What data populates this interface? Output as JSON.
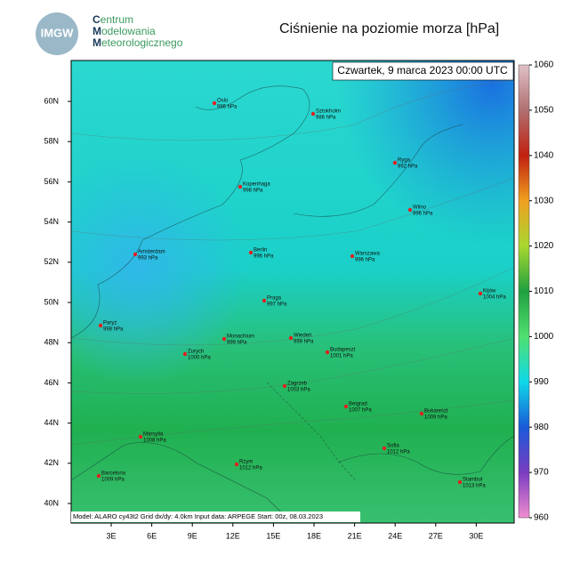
{
  "header": {
    "logo": "IMGW",
    "org": [
      "Centrum",
      "Modelowania",
      "Meteorologicznego"
    ],
    "title": "Ciśnienie na poziomie morza [hPa]"
  },
  "map": {
    "date": "Czwartek, 9 marca 2023 00:00 UTC",
    "footer": "Model: ALARO cy43t2  Grid dx/dy: 4.0km  Input data: ARPEGE  Start: 00z, 08.03.2023",
    "lat_labels": [
      "60N",
      "58N",
      "56N",
      "54N",
      "52N",
      "50N",
      "48N",
      "46N",
      "44N",
      "42N",
      "40N"
    ],
    "lon_labels": [
      "3E",
      "6E",
      "9E",
      "12E",
      "15E",
      "18E",
      "21E",
      "24E",
      "27E",
      "30E"
    ],
    "cities": [
      {
        "name": "Oslo",
        "label": "986 hPa"
      },
      {
        "name": "Sztokholm",
        "label": "986 hPa"
      },
      {
        "name": "Ryga",
        "label": "992 hPa"
      },
      {
        "name": "Kopenhaga",
        "label": "998 hPa"
      },
      {
        "name": "Wilno",
        "label": "996 hPa"
      },
      {
        "name": "Amsterdam",
        "label": "993 hPa"
      },
      {
        "name": "Berlin",
        "label": "996 hPa"
      },
      {
        "name": "Warszawa",
        "label": "996 hPa"
      },
      {
        "name": "Kijów",
        "label": "1004 hPa"
      },
      {
        "name": "Praga",
        "label": "997 hPa"
      },
      {
        "name": "Paryż",
        "label": "998 hPa"
      },
      {
        "name": "Monachium",
        "label": "999 hPa"
      },
      {
        "name": "Wiedeń",
        "label": "999 hPa"
      },
      {
        "name": "Zurych",
        "label": "1000 hPa"
      },
      {
        "name": "Budapeszt",
        "label": "1001 hPa"
      },
      {
        "name": "Zagrzeb",
        "label": "1003 hPa"
      },
      {
        "name": "Belgrad",
        "label": "1007 hPa"
      },
      {
        "name": "Bukareszt",
        "label": "1009 hPa"
      },
      {
        "name": "Marsylia",
        "label": "1008 hPa"
      },
      {
        "name": "Sofia",
        "label": "1012 hPa"
      },
      {
        "name": "Rzym",
        "label": "1012 hPa"
      },
      {
        "name": "Barcelona",
        "label": "1009 hPa"
      },
      {
        "name": "Stambuł",
        "label": "1013 hPa"
      }
    ],
    "colorbar": {
      "ticks": [
        960,
        970,
        980,
        990,
        1000,
        1010,
        1020,
        1030,
        1040,
        1050,
        1060
      ],
      "colors": [
        "#f08cd0",
        "#7a3cc0",
        "#1a5ad8",
        "#10d8e8",
        "#50e070",
        "#20a040",
        "#a8d830",
        "#f0a020",
        "#c02010",
        "#b07070",
        "#e0c0c8"
      ]
    }
  }
}
